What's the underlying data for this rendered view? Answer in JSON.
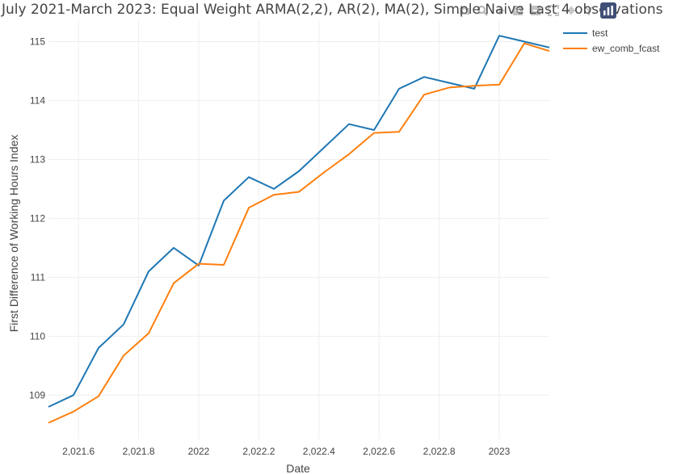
{
  "chart_data": {
    "type": "line",
    "title": "July 2021-March 2023: Equal Weight ARMA(2,2), AR(2), MA(2), Simple Naive Last 4 observations",
    "xlabel": "Date",
    "ylabel": "First Difference of Working Hours Index",
    "xlim": [
      2021.5,
      2023.1667
    ],
    "ylim": [
      108.25,
      115.35
    ],
    "x_ticks": [
      2021.6,
      2021.8,
      2022.0,
      2022.2,
      2022.4,
      2022.6,
      2022.8,
      2023.0
    ],
    "x_tick_labels": [
      "2,021.6",
      "2,021.8",
      "2022",
      "2,022.2",
      "2,022.4",
      "2,022.6",
      "2,022.8",
      "2023"
    ],
    "y_ticks": [
      109,
      110,
      111,
      112,
      113,
      114,
      115
    ],
    "y_tick_labels": [
      "109",
      "110",
      "111",
      "112",
      "113",
      "114",
      "115"
    ],
    "grid": true,
    "legend_position": "top-right",
    "x": [
      2021.5,
      2021.5833,
      2021.6667,
      2021.75,
      2021.8333,
      2021.9167,
      2022.0,
      2022.0833,
      2022.1667,
      2022.25,
      2022.3333,
      2022.4167,
      2022.5,
      2022.5833,
      2022.6667,
      2022.75,
      2022.8333,
      2022.9167,
      2023.0,
      2023.0833,
      2023.1667
    ],
    "series": [
      {
        "name": "test",
        "color": "#1f77b4",
        "values": [
          108.8,
          109.0,
          109.8,
          110.2,
          111.1,
          111.5,
          111.2,
          112.3,
          112.7,
          112.5,
          112.8,
          113.2,
          113.6,
          113.5,
          114.2,
          114.4,
          114.3,
          114.2,
          115.1,
          115.0,
          114.9
        ]
      },
      {
        "name": "ew_comb_fcast",
        "color": "#ff7f0e",
        "values": [
          108.53,
          108.72,
          108.98,
          109.67,
          110.05,
          110.9,
          111.23,
          111.21,
          112.18,
          112.4,
          112.45,
          112.78,
          113.09,
          113.45,
          113.47,
          114.1,
          114.22,
          114.25,
          114.27,
          114.97,
          114.84
        ]
      }
    ]
  },
  "modebar": {
    "icons": [
      "camera-icon",
      "zoom-icon",
      "pan-icon",
      "zoom-in-icon",
      "zoom-out-icon",
      "autoscale-icon",
      "reset-axes-icon",
      "spike-lines-icon",
      "plotly-logo-icon"
    ]
  }
}
